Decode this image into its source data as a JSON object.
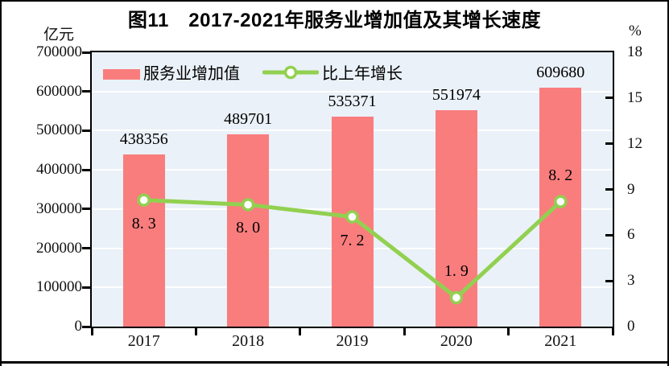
{
  "chart_data": {
    "type": "bar+line",
    "title": "图11　2017-2021年服务业增加值及其增长速度",
    "categories": [
      "2017",
      "2018",
      "2019",
      "2020",
      "2021"
    ],
    "series": [
      {
        "name": "服务业增加值",
        "type": "bar",
        "axis": "left",
        "color": "#F97D7D",
        "values": [
          438356,
          489701,
          535371,
          551974,
          609680
        ],
        "labels": [
          "438356",
          "489701",
          "535371",
          "551974",
          "609680"
        ]
      },
      {
        "name": "比上年增长",
        "type": "line",
        "axis": "right",
        "color": "#92D050",
        "marker_fill": "#FFFFFF",
        "values": [
          8.3,
          8.0,
          7.2,
          1.9,
          8.2
        ],
        "labels": [
          "8. 3",
          "8. 0",
          "7. 2",
          "1. 9",
          "8. 2"
        ],
        "label_side": [
          "below",
          "below",
          "below",
          "above",
          "above"
        ]
      }
    ],
    "left_axis": {
      "unit": "亿元",
      "min": 0,
      "max": 700000,
      "step": 100000,
      "ticks": [
        "700000",
        "600000",
        "500000",
        "400000",
        "300000",
        "200000",
        "100000",
        "0"
      ]
    },
    "right_axis": {
      "unit": "%",
      "min": 0,
      "max": 18,
      "step": 3,
      "ticks": [
        "18",
        "15",
        "12",
        "9",
        "6",
        "3",
        "0"
      ]
    },
    "plot": {
      "background": "#EAF1F8",
      "gridline_color": "#FFFFFF",
      "grid": "horizontal-only",
      "border_color": "#000000"
    },
    "legend": {
      "position": "inside-top-left",
      "items": [
        "服务业增加值",
        "比上年增长"
      ]
    }
  }
}
